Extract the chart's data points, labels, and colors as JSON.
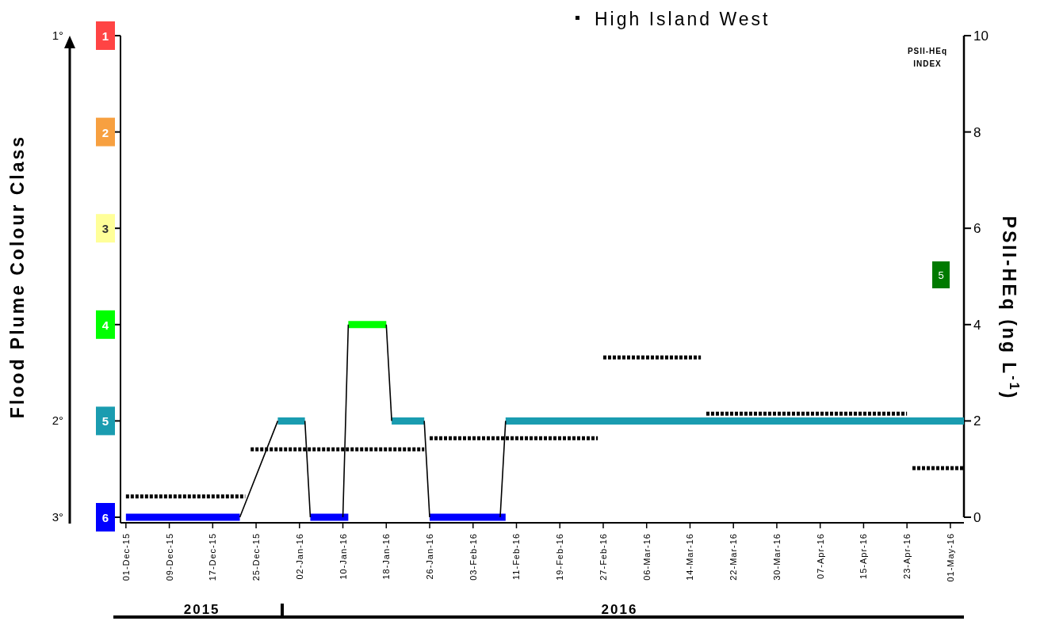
{
  "chart_data": {
    "type": "line",
    "ylabel": "Flood Plume Colour Class",
    "y2label": "PSII-HEq (ng L$^{-1}$)",
    "xlim": [
      "2015-11-30",
      "2016-05-03T12:00"
    ],
    "xticks": [
      {
        "value": "2015-12-01",
        "label": "01-Dec-15"
      },
      {
        "value": "2015-12-09",
        "label": "09-Dec-15"
      },
      {
        "value": "2015-12-17",
        "label": "17-Dec-15"
      },
      {
        "value": "2015-12-25",
        "label": "25-Dec-15"
      },
      {
        "value": "2016-01-02",
        "label": "02-Jan-16"
      },
      {
        "value": "2016-01-10",
        "label": "10-Jan-16"
      },
      {
        "value": "2016-01-18",
        "label": "18-Jan-16"
      },
      {
        "value": "2016-01-26",
        "label": "26-Jan-16"
      },
      {
        "value": "2016-02-03",
        "label": "03-Feb-16"
      },
      {
        "value": "2016-02-11",
        "label": "11-Feb-16"
      },
      {
        "value": "2016-02-19",
        "label": "19-Feb-16"
      },
      {
        "value": "2016-02-27",
        "label": "27-Feb-16"
      },
      {
        "value": "2016-03-06",
        "label": "06-Mar-16"
      },
      {
        "value": "2016-03-14",
        "label": "14-Mar-16"
      },
      {
        "value": "2016-03-22",
        "label": "22-Mar-16"
      },
      {
        "value": "2016-03-30",
        "label": "30-Mar-16"
      },
      {
        "value": "2016-04-07",
        "label": "07-Apr-16"
      },
      {
        "value": "2016-04-15",
        "label": "15-Apr-16"
      },
      {
        "value": "2016-04-23",
        "label": "23-Apr-16"
      },
      {
        "value": "2016-05-01",
        "label": "01-May-16"
      }
    ],
    "x2lim": [
      "2015-11-30",
      "2016-05-03T12:00"
    ],
    "x2ticks": [
      {
        "value": "2015-12-15",
        "label": "2015"
      },
      {
        "value": "2016-03-01",
        "label": "2016"
      }
    ],
    "ylim": [
      6,
      1
    ],
    "yticks": [
      1,
      2,
      3,
      4,
      5,
      6
    ],
    "y2lim": [
      0,
      10
    ],
    "y2ticks": [
      0,
      2,
      4,
      6,
      8,
      10
    ],
    "legend": "top",
    "annotations": [
      "1°",
      "2°",
      "3°",
      "PSII-HEq INDEX",
      "5"
    ],
    "series": [
      {
        "color": "#ff4444"
      },
      {
        "color": "#f7a040"
      },
      {
        "color": "#ffff99"
      },
      {
        "color": "#00ff00",
        "x": [
          "2016-01-11",
          "2016-01-18"
        ],
        "values": [
          4,
          4
        ]
      },
      {
        "color": "#1a9cb0",
        "x": [
          "2015-12-29",
          "2016-01-03",
          "2016-01-10",
          "2016-01-19",
          "2016-01-25",
          "2016-02-01",
          "2016-02-09",
          "2016-05-03T12:00"
        ],
        "values": [
          5,
          5,
          null,
          5,
          5,
          null,
          5,
          5
        ]
      },
      {
        "color": "#0000ff",
        "x": [
          "2015-12-01",
          "2015-12-22",
          "2015-12-28",
          "2016-01-04",
          "2016-01-11",
          "2016-01-18",
          "2016-01-26",
          "2016-02-09"
        ],
        "values": [
          6,
          6,
          null,
          6,
          6,
          null,
          6,
          6
        ]
      },
      {
        "color": "#000000",
        "x": [
          "2015-12-22",
          "2015-12-29",
          "2015-12-30",
          "2016-01-03",
          "2016-01-04",
          "2016-01-05",
          "2016-01-10",
          "2016-01-11",
          "2016-01-12",
          "2016-01-18",
          "2016-01-19",
          "2016-01-20",
          "2016-01-25",
          "2016-01-26",
          "2016-01-27",
          "2016-02-08",
          "2016-02-09"
        ],
        "values": [
          6,
          5,
          null,
          5,
          6,
          null,
          6,
          4,
          null,
          4,
          5,
          null,
          5,
          6,
          null,
          6,
          5
        ]
      },
      {
        "name": "High Island West",
        "color": "#000000",
        "axis": "y2",
        "line_style": "dotted",
        "x": [
          "2015-12-01",
          "2015-12-23",
          "2015-12-23T12:00",
          "2015-12-24",
          "2016-01-25",
          "2016-01-25T12:00",
          "2016-01-26",
          "2016-02-26",
          "2016-02-26T12:00",
          "2016-02-27",
          "2016-03-16",
          "2016-03-16T12:00",
          "2016-03-17",
          "2016-04-23",
          "2016-04-23T12:00",
          "2016-04-24",
          "2016-05-03T12:00"
        ],
        "values": [
          0.43,
          0.43,
          null,
          1.41,
          1.41,
          null,
          1.64,
          1.64,
          null,
          3.32,
          3.32,
          null,
          2.15,
          2.15,
          null,
          1.02,
          1.02
        ]
      }
    ]
  }
}
